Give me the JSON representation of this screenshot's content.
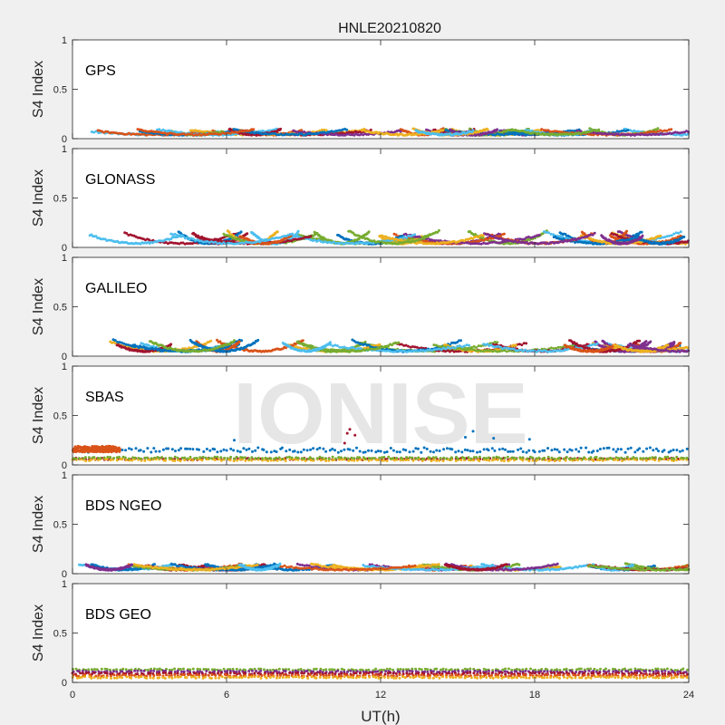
{
  "figure": {
    "title": "HNLE20210820",
    "watermark": "IONISE",
    "background_color": "#f0f0f0",
    "axes_color": "#ffffff",
    "watermark_color": "#e6e6e6"
  },
  "series_colors": [
    "#0072BD",
    "#D95319",
    "#EDB120",
    "#7E2F8E",
    "#77AC30",
    "#4DBEEE",
    "#A2142F"
  ],
  "chart_data": [
    {
      "type": "scatter",
      "panel_label": "GPS",
      "ylabel": "S4 Index",
      "xlabel": "",
      "xlim": [
        0,
        24
      ],
      "ylim": [
        0,
        1
      ],
      "yticks": [
        0,
        0.5,
        1
      ],
      "ytick_labels": [
        "0",
        "0.5",
        "1"
      ],
      "xticks": [
        0,
        6,
        12,
        18,
        24
      ],
      "xtick_labels": [],
      "typical_s4_range": [
        0.03,
        0.14
      ],
      "grid": false
    },
    {
      "type": "scatter",
      "panel_label": "GLONASS",
      "ylabel": "S4 Index",
      "xlabel": "",
      "xlim": [
        0,
        24
      ],
      "ylim": [
        0,
        1
      ],
      "yticks": [
        0,
        0.5,
        1
      ],
      "ytick_labels": [
        "0",
        "0.5",
        "1"
      ],
      "xticks": [
        0,
        6,
        12,
        18,
        24
      ],
      "xtick_labels": [],
      "typical_s4_range": [
        0.03,
        0.17
      ],
      "grid": false
    },
    {
      "type": "scatter",
      "panel_label": "GALILEO",
      "ylabel": "S4 Index",
      "xlabel": "",
      "xlim": [
        0,
        24
      ],
      "ylim": [
        0,
        1
      ],
      "yticks": [
        0,
        0.5,
        1
      ],
      "ytick_labels": [
        "0",
        "0.5",
        "1"
      ],
      "xticks": [
        0,
        6,
        12,
        18,
        24
      ],
      "xtick_labels": [],
      "typical_s4_range": [
        0.04,
        0.17
      ],
      "grid": false
    },
    {
      "type": "scatter",
      "panel_label": "SBAS",
      "ylabel": "S4 Index",
      "xlabel": "",
      "xlim": [
        0,
        24
      ],
      "ylim": [
        0,
        1
      ],
      "yticks": [
        0,
        0.5,
        1
      ],
      "ytick_labels": [
        "0",
        "0.5",
        "1"
      ],
      "xticks": [
        0,
        6,
        12,
        18,
        24
      ],
      "xtick_labels": [],
      "typical_s4_range": [
        0.04,
        0.2
      ],
      "series": [
        {
          "color": "#0072BD",
          "s4_level": 0.15,
          "spread": 0.025,
          "x_range": [
            0,
            24
          ]
        },
        {
          "color": "#D95319",
          "s4_level": 0.16,
          "spread": 0.03,
          "x_range": [
            0,
            1.8
          ]
        },
        {
          "color": "#A2142F",
          "s4_level": 0.06,
          "spread": 0.01,
          "x_range": [
            0,
            24
          ]
        },
        {
          "color": "#EDB120",
          "s4_level": 0.05,
          "spread": 0.01,
          "x_range": [
            0,
            24
          ]
        },
        {
          "color": "#77AC30",
          "s4_level": 0.07,
          "spread": 0.01,
          "x_range": [
            0,
            24
          ]
        }
      ],
      "outliers": [
        {
          "x": 10.7,
          "y": 0.32,
          "color": "#A2142F"
        },
        {
          "x": 10.8,
          "y": 0.36,
          "color": "#A2142F"
        },
        {
          "x": 11.0,
          "y": 0.3,
          "color": "#A2142F"
        },
        {
          "x": 10.6,
          "y": 0.22,
          "color": "#A2142F"
        },
        {
          "x": 15.6,
          "y": 0.34,
          "color": "#0072BD"
        },
        {
          "x": 15.3,
          "y": 0.28,
          "color": "#0072BD"
        },
        {
          "x": 16.4,
          "y": 0.27,
          "color": "#0072BD"
        },
        {
          "x": 17.8,
          "y": 0.26,
          "color": "#0072BD"
        },
        {
          "x": 6.3,
          "y": 0.25,
          "color": "#0072BD"
        }
      ],
      "grid": false
    },
    {
      "type": "scatter",
      "panel_label": "BDS NGEO",
      "ylabel": "S4 Index",
      "xlabel": "",
      "xlim": [
        0,
        24
      ],
      "ylim": [
        0,
        1
      ],
      "yticks": [
        0,
        0.5,
        1
      ],
      "ytick_labels": [
        "0",
        "0.5",
        "1"
      ],
      "xticks": [
        0,
        6,
        12,
        18,
        24
      ],
      "xtick_labels": [],
      "typical_s4_range": [
        0.03,
        0.14
      ],
      "grid": false
    },
    {
      "type": "scatter",
      "panel_label": "BDS GEO",
      "ylabel": "S4 Index",
      "xlabel": "UT(h)",
      "xlim": [
        0,
        24
      ],
      "ylim": [
        0,
        1
      ],
      "yticks": [
        0,
        0.5,
        1
      ],
      "ytick_labels": [
        "0",
        "0.5",
        "1"
      ],
      "xticks": [
        0,
        6,
        12,
        18,
        24
      ],
      "xtick_labels": [
        "0",
        "6",
        "12",
        "18",
        "24"
      ],
      "series": [
        {
          "color": "#77AC30",
          "s4_level": 0.13,
          "x_range": [
            0,
            24
          ]
        },
        {
          "color": "#7E2F8E",
          "s4_level": 0.11,
          "x_range": [
            0,
            24
          ]
        },
        {
          "color": "#A2142F",
          "s4_level": 0.09,
          "x_range": [
            0,
            24
          ]
        },
        {
          "color": "#D95319",
          "s4_level": 0.07,
          "x_range": [
            0,
            24
          ]
        },
        {
          "color": "#EDB120",
          "s4_level": 0.05,
          "x_range": [
            0,
            24
          ]
        }
      ],
      "grid": false
    }
  ]
}
